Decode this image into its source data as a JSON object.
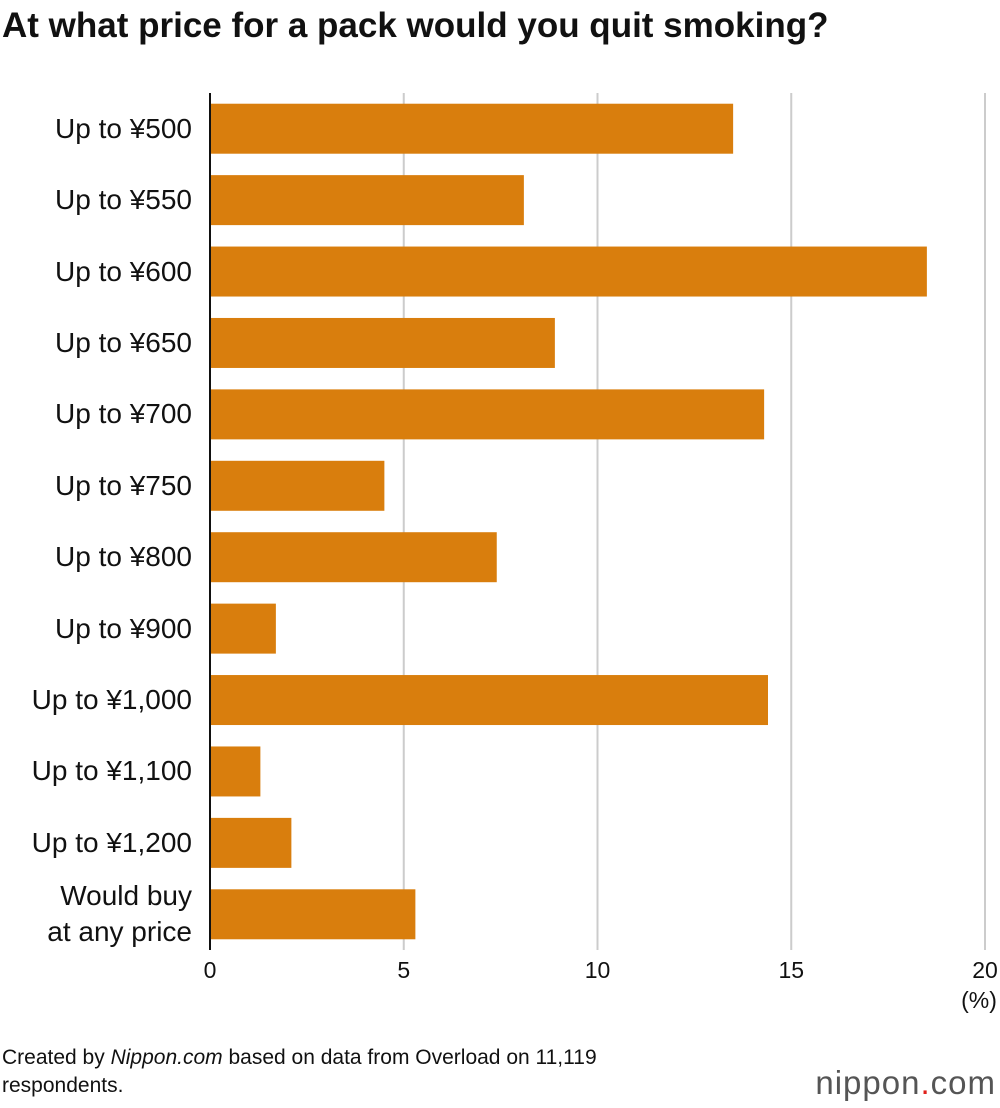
{
  "chart_data": {
    "type": "barh",
    "title": "At what price for a pack would you quit smoking?",
    "categories": [
      "Up to ¥500",
      "Up to ¥550",
      "Up to ¥600",
      "Up to ¥650",
      "Up to ¥700",
      "Up to ¥750",
      "Up to ¥800",
      "Up to ¥900",
      "Up to ¥1,000",
      "Up to ¥1,100",
      "Up to ¥1,200",
      "Would buy\nat any price"
    ],
    "values": [
      13.5,
      8.1,
      18.5,
      8.9,
      14.3,
      4.5,
      7.4,
      1.7,
      14.4,
      1.3,
      2.1,
      5.3
    ],
    "color": "#d97e0d",
    "xlim": [
      0,
      20
    ],
    "xticks": [
      0,
      5,
      10,
      15,
      20
    ],
    "x_unit": "(%)",
    "grid": true,
    "note": [
      "Created by",
      "Nippon.com",
      "based on data from Overload on 11,119 respondents."
    ],
    "logo": [
      "nippon",
      ".",
      "com"
    ]
  }
}
